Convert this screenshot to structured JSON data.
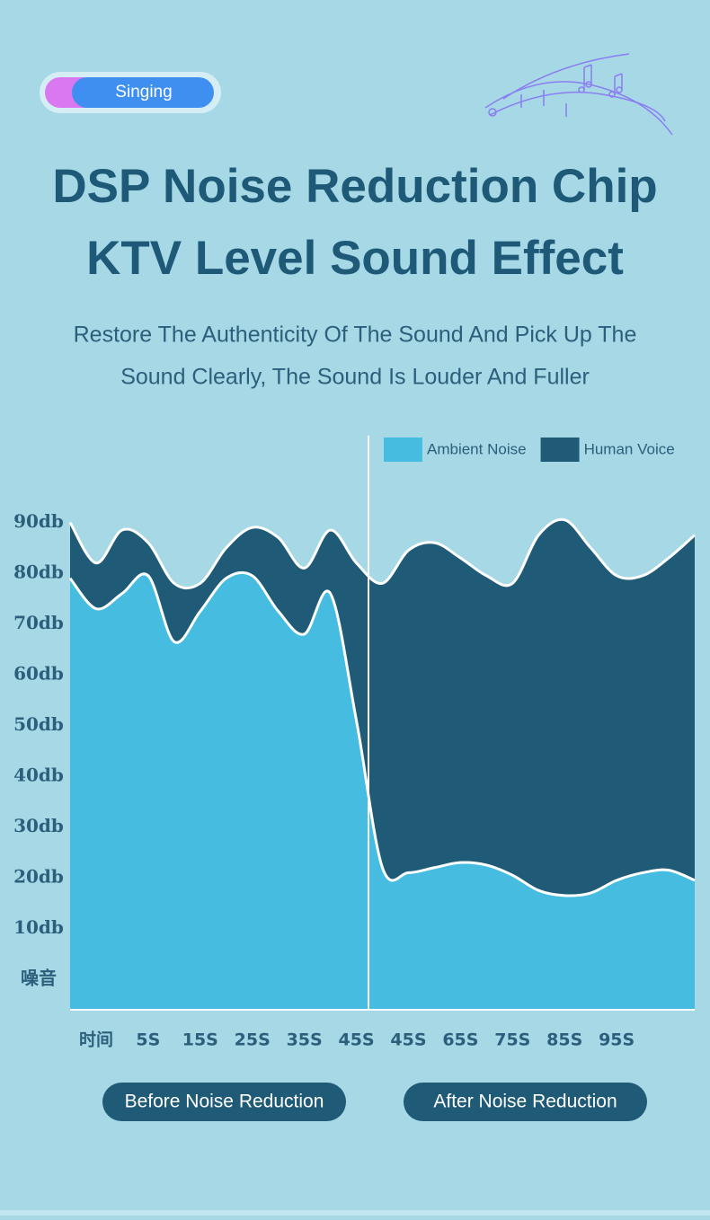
{
  "header": {
    "badge": "Singing",
    "title_lines": [
      "DSP Noise Reduction Chip",
      "KTV Level Sound Effect"
    ],
    "subtitle_lines": [
      "Restore The Authenticity Of The Sound And Pick Up The",
      "Sound Clearly, The Sound Is Louder And Fuller"
    ]
  },
  "chart_data": {
    "type": "area",
    "legend": "top-right",
    "grid": false,
    "categories": [
      null,
      "时间",
      null,
      "5S",
      null,
      "15S",
      null,
      "25S",
      null,
      "35S",
      null,
      "45S",
      null,
      "45S",
      null,
      "65S",
      null,
      "75S",
      null,
      "85S",
      null,
      "95S",
      null,
      null,
      null
    ],
    "series": [
      {
        "name": "Human Voice",
        "color": "#1f5a76",
        "values": [
          90,
          82,
          88.5,
          86,
          78,
          78,
          85,
          89,
          87,
          81,
          88.5,
          82,
          78,
          84.5,
          86,
          83,
          79.5,
          78,
          87.5,
          90.5,
          85,
          79.5,
          79.5,
          83,
          87.5
        ]
      },
      {
        "name": "Ambient Noise",
        "color": "#46bde0",
        "values": [
          79,
          73,
          76,
          79.5,
          66.5,
          72.5,
          79,
          79.5,
          72.5,
          68,
          76,
          51,
          22,
          21,
          22,
          23,
          22.5,
          20.5,
          17.5,
          16.5,
          17,
          19.5,
          21,
          21.5,
          19.5
        ]
      }
    ],
    "ylim": [
      -6,
      100
    ],
    "yticks": [
      {
        "value": 0,
        "label": "噪音"
      },
      {
        "value": 10,
        "label": "10db"
      },
      {
        "value": 20,
        "label": "20db"
      },
      {
        "value": 30,
        "label": "30db"
      },
      {
        "value": 40,
        "label": "40db"
      },
      {
        "value": 50,
        "label": "50db"
      },
      {
        "value": 60,
        "label": "60db"
      },
      {
        "value": 70,
        "label": "70db"
      },
      {
        "value": 80,
        "label": "80db"
      },
      {
        "value": 90,
        "label": "90db"
      }
    ],
    "annotations": [
      "Before Noise Reduction",
      "After Noise Reduction"
    ]
  }
}
